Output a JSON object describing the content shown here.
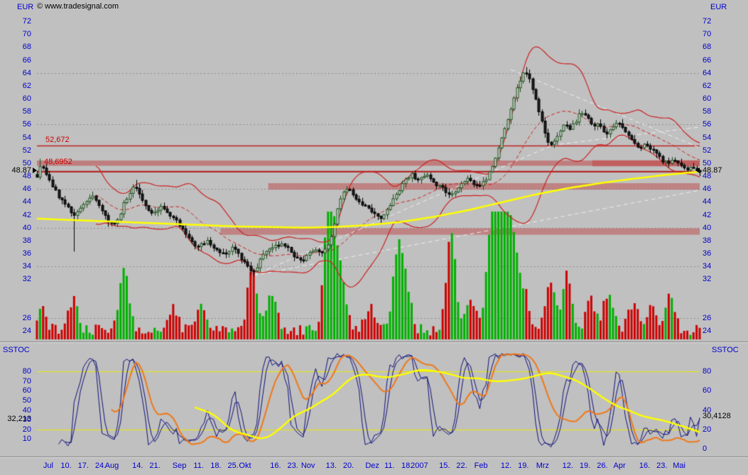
{
  "header": {
    "copyright": "© www.tradesignal.com",
    "currency_left": "EUR",
    "currency_right": "EUR"
  },
  "price_axis": {
    "labels": [
      72,
      70,
      68,
      66,
      64,
      62,
      60,
      58,
      56,
      54,
      52,
      50,
      48,
      46,
      44,
      42,
      40,
      38,
      36,
      34,
      32,
      26,
      24
    ],
    "current_left": "48.87",
    "current_right": "48.87"
  },
  "annotations": {
    "resistance_line_label": "52,672",
    "alert_line_label": "48,6952"
  },
  "sstoc": {
    "title_left": "SSTOC",
    "title_right": "SSTOC",
    "left_labels": [
      80,
      70,
      60,
      50,
      40,
      30,
      20,
      10
    ],
    "right_labels": [
      80,
      60,
      40,
      20,
      0
    ],
    "current_left": "32,213",
    "current_right": "30,4128"
  },
  "x_axis": {
    "ticks": [
      {
        "label": "Jul",
        "f": 0.017
      },
      {
        "label": "10.",
        "f": 0.044
      },
      {
        "label": "17.",
        "f": 0.07
      },
      {
        "label": "24.",
        "f": 0.096
      },
      {
        "label": "Aug",
        "f": 0.113
      },
      {
        "label": "14.",
        "f": 0.152
      },
      {
        "label": "21.",
        "f": 0.178
      },
      {
        "label": "Sep",
        "f": 0.215
      },
      {
        "label": "11.",
        "f": 0.244
      },
      {
        "label": "18.",
        "f": 0.27
      },
      {
        "label": "25.",
        "f": 0.296
      },
      {
        "label": "Okt",
        "f": 0.314
      },
      {
        "label": "16.",
        "f": 0.36
      },
      {
        "label": "23.",
        "f": 0.386
      },
      {
        "label": "Nov",
        "f": 0.409
      },
      {
        "label": "13.",
        "f": 0.444
      },
      {
        "label": "20.",
        "f": 0.47
      },
      {
        "label": "Dez",
        "f": 0.506
      },
      {
        "label": "11.",
        "f": 0.532
      },
      {
        "label": "18.",
        "f": 0.558
      },
      {
        "label": "2007",
        "f": 0.577
      },
      {
        "label": "15.",
        "f": 0.615
      },
      {
        "label": "22.",
        "f": 0.641
      },
      {
        "label": "Feb",
        "f": 0.67
      },
      {
        "label": "12.",
        "f": 0.708
      },
      {
        "label": "19.",
        "f": 0.734
      },
      {
        "label": "Mrz",
        "f": 0.763
      },
      {
        "label": "12.",
        "f": 0.801
      },
      {
        "label": "19.",
        "f": 0.827
      },
      {
        "label": "26.",
        "f": 0.853
      },
      {
        "label": "Apr",
        "f": 0.879
      },
      {
        "label": "16.",
        "f": 0.917
      },
      {
        "label": "23.",
        "f": 0.943
      },
      {
        "label": "Mai",
        "f": 0.969
      }
    ]
  },
  "chart_data": {
    "type": "candlestick",
    "title": "Daily candlestick chart with Bollinger bands, moving average, volume and slow stochastic (SSTOC)",
    "ylim": [
      24,
      72
    ],
    "stoch_ylim": [
      0,
      100
    ],
    "bars": 215,
    "gridlines": [
      64,
      56,
      46,
      40,
      34,
      26
    ],
    "price_anchors": [
      [
        0.0,
        48.0
      ],
      [
        0.006,
        49.8
      ],
      [
        0.012,
        48.5
      ],
      [
        0.02,
        47.2
      ],
      [
        0.03,
        45.2
      ],
      [
        0.04,
        44.0
      ],
      [
        0.05,
        42.6
      ],
      [
        0.057,
        42.0
      ],
      [
        0.065,
        43.0
      ],
      [
        0.075,
        44.2
      ],
      [
        0.085,
        44.8
      ],
      [
        0.095,
        43.2
      ],
      [
        0.105,
        41.2
      ],
      [
        0.115,
        40.6
      ],
      [
        0.125,
        42.0
      ],
      [
        0.132,
        44.0
      ],
      [
        0.14,
        45.2
      ],
      [
        0.148,
        46.6
      ],
      [
        0.155,
        45.0
      ],
      [
        0.165,
        43.0
      ],
      [
        0.175,
        42.2
      ],
      [
        0.185,
        43.2
      ],
      [
        0.195,
        42.6
      ],
      [
        0.205,
        41.6
      ],
      [
        0.215,
        40.4
      ],
      [
        0.225,
        39.0
      ],
      [
        0.235,
        37.6
      ],
      [
        0.245,
        37.0
      ],
      [
        0.255,
        38.0
      ],
      [
        0.265,
        37.2
      ],
      [
        0.275,
        36.4
      ],
      [
        0.285,
        36.0
      ],
      [
        0.295,
        37.0
      ],
      [
        0.305,
        35.6
      ],
      [
        0.315,
        34.6
      ],
      [
        0.325,
        33.2
      ],
      [
        0.332,
        34.0
      ],
      [
        0.34,
        35.6
      ],
      [
        0.35,
        36.4
      ],
      [
        0.36,
        37.2
      ],
      [
        0.37,
        37.6
      ],
      [
        0.38,
        36.6
      ],
      [
        0.39,
        35.4
      ],
      [
        0.4,
        35.0
      ],
      [
        0.41,
        36.0
      ],
      [
        0.42,
        36.8
      ],
      [
        0.428,
        36.0
      ],
      [
        0.436,
        36.6
      ],
      [
        0.444,
        38.5
      ],
      [
        0.45,
        41.5
      ],
      [
        0.456,
        44.0
      ],
      [
        0.462,
        45.6
      ],
      [
        0.47,
        46.2
      ],
      [
        0.478,
        45.0
      ],
      [
        0.486,
        44.0
      ],
      [
        0.494,
        43.6
      ],
      [
        0.502,
        42.8
      ],
      [
        0.51,
        42.0
      ],
      [
        0.518,
        41.6
      ],
      [
        0.526,
        42.6
      ],
      [
        0.534,
        43.8
      ],
      [
        0.542,
        45.2
      ],
      [
        0.55,
        46.4
      ],
      [
        0.558,
        47.6
      ],
      [
        0.565,
        48.2
      ],
      [
        0.572,
        47.2
      ],
      [
        0.58,
        47.8
      ],
      [
        0.588,
        48.4
      ],
      [
        0.595,
        47.4
      ],
      [
        0.602,
        46.8
      ],
      [
        0.61,
        46.2
      ],
      [
        0.618,
        45.4
      ],
      [
        0.626,
        45.0
      ],
      [
        0.634,
        46.0
      ],
      [
        0.642,
        46.8
      ],
      [
        0.65,
        47.6
      ],
      [
        0.658,
        46.8
      ],
      [
        0.665,
        46.2
      ],
      [
        0.672,
        47.0
      ],
      [
        0.68,
        48.0
      ],
      [
        0.688,
        49.8
      ],
      [
        0.694,
        51.5
      ],
      [
        0.7,
        53.5
      ],
      [
        0.706,
        55.5
      ],
      [
        0.712,
        57.5
      ],
      [
        0.718,
        59.5
      ],
      [
        0.724,
        61.5
      ],
      [
        0.73,
        63.0
      ],
      [
        0.736,
        64.3
      ],
      [
        0.742,
        63.2
      ],
      [
        0.748,
        61.5
      ],
      [
        0.754,
        59.5
      ],
      [
        0.76,
        57.0
      ],
      [
        0.766,
        55.0
      ],
      [
        0.772,
        53.2
      ],
      [
        0.778,
        52.8
      ],
      [
        0.784,
        54.0
      ],
      [
        0.79,
        55.2
      ],
      [
        0.797,
        56.0
      ],
      [
        0.804,
        55.2
      ],
      [
        0.811,
        56.2
      ],
      [
        0.818,
        57.6
      ],
      [
        0.825,
        58.0
      ],
      [
        0.832,
        56.8
      ],
      [
        0.839,
        55.6
      ],
      [
        0.846,
        56.2
      ],
      [
        0.853,
        55.2
      ],
      [
        0.86,
        54.6
      ],
      [
        0.867,
        55.6
      ],
      [
        0.874,
        56.4
      ],
      [
        0.881,
        55.8
      ],
      [
        0.888,
        54.8
      ],
      [
        0.895,
        53.8
      ],
      [
        0.902,
        53.0
      ],
      [
        0.909,
        52.4
      ],
      [
        0.916,
        53.2
      ],
      [
        0.923,
        52.6
      ],
      [
        0.93,
        51.8
      ],
      [
        0.937,
        51.0
      ],
      [
        0.944,
        50.4
      ],
      [
        0.951,
        50.0
      ],
      [
        0.958,
        50.6
      ],
      [
        0.965,
        50.0
      ],
      [
        0.972,
        49.4
      ],
      [
        0.979,
        49.0
      ],
      [
        0.986,
        49.6
      ],
      [
        0.993,
        49.2
      ],
      [
        1.0,
        48.87
      ]
    ],
    "wick_events": [
      {
        "f": 0.006,
        "high": 50.7
      },
      {
        "f": 0.055,
        "low": 36.3
      },
      {
        "f": 0.148,
        "high": 47.4
      },
      {
        "f": 0.325,
        "low": 32.5
      },
      {
        "f": 0.736,
        "high": 64.9
      }
    ],
    "ma_anchors": [
      [
        0,
        41.4
      ],
      [
        0.1,
        41.0
      ],
      [
        0.2,
        40.6
      ],
      [
        0.3,
        40.2
      ],
      [
        0.4,
        40.0
      ],
      [
        0.45,
        40.1
      ],
      [
        0.5,
        40.4
      ],
      [
        0.55,
        40.9
      ],
      [
        0.6,
        41.7
      ],
      [
        0.65,
        42.7
      ],
      [
        0.7,
        43.9
      ],
      [
        0.75,
        45.1
      ],
      [
        0.8,
        46.1
      ],
      [
        0.85,
        46.9
      ],
      [
        0.9,
        47.6
      ],
      [
        0.95,
        48.2
      ],
      [
        1,
        48.7
      ]
    ],
    "hlines": [
      {
        "value": 52.672,
        "label": "52,672",
        "color": "#c22020",
        "width": 1.5
      },
      {
        "value": 48.6952,
        "label": "48,6952",
        "color": "#b01818",
        "width": 2
      }
    ],
    "zones": [
      {
        "from": 49.6,
        "to": 50.4,
        "x0": 0,
        "x1": 1,
        "color": "rgba(190,80,80,0.60)"
      },
      {
        "from": 49.5,
        "to": 50.45,
        "x0": 0.838,
        "x1": 1,
        "color": "rgba(195,70,70,0.55)"
      },
      {
        "from": 45.9,
        "to": 46.9,
        "x0": 0.349,
        "x1": 1,
        "color": "rgba(190,80,80,0.55)"
      },
      {
        "from": 38.9,
        "to": 39.9,
        "x0": 0.277,
        "x1": 1,
        "color": "rgba(190,80,80,0.55)"
      }
    ],
    "trendlines": [
      {
        "x0": 0.327,
        "y0": 32.6,
        "x1": 1.0,
        "y1": 45.8
      },
      {
        "x0": 0.327,
        "y0": 32.6,
        "x1": 0.778,
        "y1": 52.8
      },
      {
        "x0": 0.715,
        "y0": 64.5,
        "x1": 1.0,
        "y1": 52.4
      },
      {
        "x0": 0.778,
        "y0": 52.8,
        "x1": 1.0,
        "y1": 55.6
      }
    ],
    "bollinger": {
      "period": 20,
      "mult": 2
    },
    "volume_spikes": [
      [
        0.006,
        0.18
      ],
      [
        0.055,
        0.25
      ],
      [
        0.132,
        0.5
      ],
      [
        0.205,
        0.18
      ],
      [
        0.248,
        0.22
      ],
      [
        0.325,
        0.55
      ],
      [
        0.355,
        0.32
      ],
      [
        0.44,
        0.97
      ],
      [
        0.45,
        0.5
      ],
      [
        0.462,
        0.3
      ],
      [
        0.502,
        0.2
      ],
      [
        0.545,
        0.72
      ],
      [
        0.558,
        0.3
      ],
      [
        0.625,
        0.82
      ],
      [
        0.655,
        0.28
      ],
      [
        0.683,
        0.5
      ],
      [
        0.693,
        0.85
      ],
      [
        0.703,
        0.55
      ],
      [
        0.713,
        0.62
      ],
      [
        0.722,
        0.4
      ],
      [
        0.736,
        0.3
      ],
      [
        0.775,
        0.42
      ],
      [
        0.8,
        0.48
      ],
      [
        0.835,
        0.27
      ],
      [
        0.862,
        0.32
      ],
      [
        0.9,
        0.22
      ],
      [
        0.927,
        0.18
      ],
      [
        0.955,
        0.3
      ]
    ],
    "stoch": {
      "k_period": 8,
      "d_period": 3,
      "slow_period": 21,
      "slow_smooth": 5,
      "trend_period": 28,
      "levels": [
        80,
        20
      ],
      "current_fast": 32.213,
      "current_slow": 30.4128
    },
    "colors": {
      "background": "#c0c0c0",
      "grid": "#8f8f8f",
      "axis_text": "#0000cc",
      "annotation_text": "#cc0000",
      "candle_up_fill": "#c9d6c9",
      "candle_up_stroke": "#1d4d1d",
      "candle_down_fill": "#1e1e1e",
      "candle_down_stroke": "#000000",
      "volume_up": "#00b000",
      "volume_down": "#cc0000",
      "bollinger": "#cc2222",
      "sma_dashed": "#cc2222",
      "ma_yellow": "#ffff00",
      "trendline": "#eeeeee",
      "stoch_fast": "#10107c",
      "stoch_slow": "#f07818",
      "stoch_trend": "#ffff00",
      "stoch_level": "#e8e800"
    }
  }
}
